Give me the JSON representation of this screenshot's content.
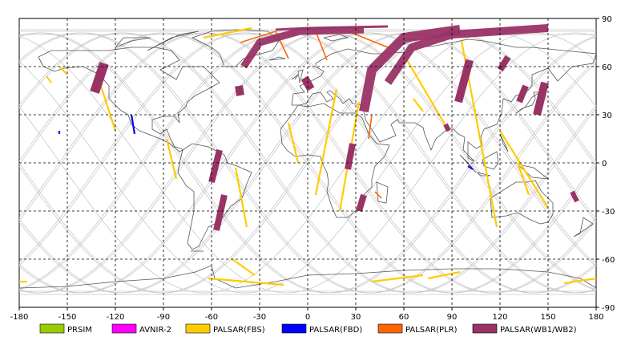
{
  "map": {
    "projection": "equirectangular",
    "lon_range": [
      -180,
      180
    ],
    "lat_range": [
      -90,
      90
    ],
    "grid": true,
    "lon_ticks": [
      -180,
      -150,
      -120,
      -90,
      -60,
      -30,
      0,
      30,
      60,
      90,
      120,
      150,
      180
    ],
    "lat_ticks": [
      90,
      60,
      30,
      0,
      -30,
      -60,
      -90
    ],
    "tick_labels_x": [
      "-180",
      "-150",
      "-120",
      "-90",
      "-60",
      "-30",
      "0",
      "30",
      "60",
      "90",
      "120",
      "150",
      "180"
    ],
    "tick_labels_y": [
      "90",
      "60",
      "30",
      "0",
      "-30",
      "-60",
      "-90"
    ]
  },
  "legend": [
    {
      "label": "PRSIM",
      "color": "#99cc00"
    },
    {
      "label": "AVNIR-2",
      "color": "#ff00ff"
    },
    {
      "label": "PALSAR(FBS)",
      "color": "#ffcc00"
    },
    {
      "label": "PALSAR(FBD)",
      "color": "#0000ff"
    },
    {
      "label": "PALSAR(PLR)",
      "color": "#ff6600"
    },
    {
      "label": "PALSAR(WB1/WB2)",
      "color": "#993366"
    }
  ],
  "colors": {
    "coast": "#555555",
    "orbit": "#c8c8c8",
    "grid": "#000000"
  },
  "coverage": {
    "wb": [
      {
        "lat1": 62,
        "lon1": -127,
        "lat2": 44,
        "lon2": -133,
        "w": 6
      },
      {
        "lat1": 48,
        "lon1": -43,
        "lat2": 42,
        "lon2": -42,
        "w": 5
      },
      {
        "lat1": 8,
        "lon1": -55,
        "lat2": -12,
        "lon2": -60,
        "w": 4
      },
      {
        "lat1": -20,
        "lon1": -52,
        "lat2": -42,
        "lon2": -57,
        "w": 4
      },
      {
        "lat1": 53,
        "lon1": -2,
        "lat2": 46,
        "lon2": 2,
        "w": 5
      },
      {
        "lat1": 12,
        "lon1": 28,
        "lat2": -4,
        "lon2": 25,
        "w": 4
      },
      {
        "lat1": -20,
        "lon1": 35,
        "lat2": -30,
        "lon2": 32,
        "w": 4
      },
      {
        "lat1": 64,
        "lon1": 101,
        "lat2": 38,
        "lon2": 94,
        "w": 5
      },
      {
        "lat1": 48,
        "lon1": 136,
        "lat2": 38,
        "lon2": 132,
        "w": 4
      },
      {
        "lat1": 50,
        "lon1": 148,
        "lat2": 30,
        "lon2": 143,
        "w": 5
      },
      {
        "lat1": 66,
        "lon1": 125,
        "lat2": 58,
        "lon2": 120,
        "w": 4
      },
      {
        "lat1": -18,
        "lon1": 165,
        "lat2": -24,
        "lon2": 168,
        "w": 3
      },
      {
        "lat1": 24,
        "lon1": 86,
        "lat2": 20,
        "lon2": 88,
        "w": 3
      }
    ],
    "wb_arcs": [
      {
        "pts": [
          [
            -40,
            60
          ],
          [
            -30,
            75
          ],
          [
            -5,
            82
          ],
          [
            35,
            83
          ]
        ],
        "w": 9
      },
      {
        "pts": [
          [
            35,
            32
          ],
          [
            40,
            58
          ],
          [
            60,
            78
          ],
          [
            95,
            83
          ]
        ],
        "w": 12
      },
      {
        "pts": [
          [
            50,
            50
          ],
          [
            65,
            72
          ],
          [
            90,
            80
          ],
          [
            150,
            84
          ]
        ],
        "w": 10
      },
      {
        "pts": [
          [
            -20,
            83
          ],
          [
            0,
            84
          ],
          [
            50,
            85
          ]
        ],
        "w": 3
      }
    ],
    "fbs": [
      {
        "lat1": 54,
        "lon1": -163,
        "lat2": 50,
        "lon2": -160
      },
      {
        "lat1": 60,
        "lon1": -155,
        "lat2": 55,
        "lon2": -150
      },
      {
        "lat1": 54,
        "lon1": -131,
        "lat2": 20,
        "lon2": -120
      },
      {
        "lat1": 15,
        "lon1": -88,
        "lat2": -10,
        "lon2": -82
      },
      {
        "lat1": -3,
        "lon1": -45,
        "lat2": -40,
        "lon2": -38
      },
      {
        "lat1": 25,
        "lon1": -12,
        "lat2": 0,
        "lon2": -6
      },
      {
        "lat1": 46,
        "lon1": 18,
        "lat2": -20,
        "lon2": 5
      },
      {
        "lat1": 38,
        "lon1": 32,
        "lat2": -30,
        "lon2": 20
      },
      {
        "lat1": 64,
        "lon1": 62,
        "lat2": 20,
        "lon2": 88
      },
      {
        "lat1": 76,
        "lon1": 96,
        "lat2": -40,
        "lon2": 118
      },
      {
        "lat1": 20,
        "lon1": 120,
        "lat2": -28,
        "lon2": 150
      },
      {
        "lat1": 0,
        "lon1": 131,
        "lat2": -20,
        "lon2": 138
      },
      {
        "lat1": -60,
        "lon1": -47,
        "lat2": -70,
        "lon2": -33
      },
      {
        "lat1": -72,
        "lon1": -62,
        "lat2": -76,
        "lon2": -15
      },
      {
        "lat1": -74,
        "lon1": 40,
        "lat2": -70,
        "lon2": 72
      },
      {
        "lat1": -72,
        "lon1": 75,
        "lat2": -68,
        "lon2": 95
      },
      {
        "lat1": -75,
        "lon1": 160,
        "lat2": -72,
        "lon2": 180
      },
      {
        "lat1": -74,
        "lon1": -180,
        "lat2": -74,
        "lon2": -175
      },
      {
        "lat1": 78,
        "lon1": -65,
        "lat2": 84,
        "lon2": -35
      },
      {
        "lat1": 40,
        "lon1": 66,
        "lat2": 32,
        "lon2": 72
      }
    ],
    "fbd": [
      {
        "lat1": 20,
        "lon1": -155,
        "lat2": 18,
        "lon2": -155
      },
      {
        "lat1": 30,
        "lon1": -110,
        "lat2": 18,
        "lon2": -108
      },
      {
        "lat1": -2,
        "lon1": 100,
        "lat2": -4,
        "lon2": 103
      }
    ],
    "plr": [
      {
        "lat1": 75,
        "lon1": -42,
        "lat2": 82,
        "lon2": -20
      },
      {
        "lat1": 82,
        "lon1": -20,
        "lat2": 65,
        "lon2": -12
      },
      {
        "lat1": 82,
        "lon1": 5,
        "lat2": 64,
        "lon2": 12
      },
      {
        "lat1": 82,
        "lon1": 25,
        "lat2": 72,
        "lon2": 50
      },
      {
        "lat1": 30,
        "lon1": 40,
        "lat2": 15,
        "lon2": 38
      },
      {
        "lat1": -18,
        "lon1": 42,
        "lat2": -22,
        "lon2": 46
      }
    ]
  }
}
